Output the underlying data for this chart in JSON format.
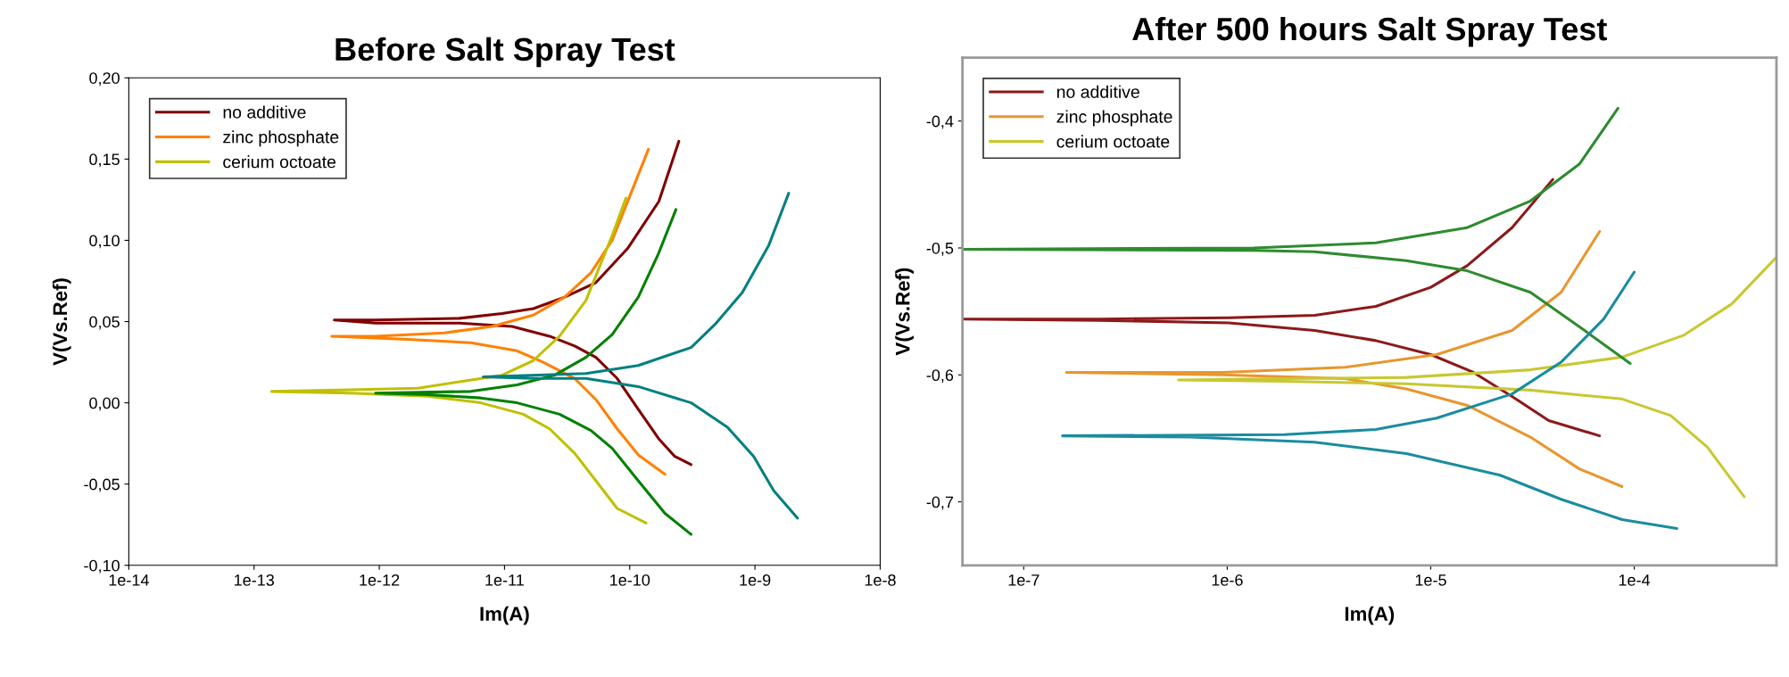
{
  "chart_data": [
    {
      "type": "line",
      "title": "Before Salt Spray Test",
      "xlabel": "Im(A)",
      "ylabel": "V(Vs.Ref)",
      "log": "x",
      "grid": false,
      "legend": "top left",
      "line_style": "solid",
      "marker": "none",
      "xlim": [
        1e-14,
        1e-08
      ],
      "xticks": [
        {
          "value": 1e-14,
          "label": "1e-14"
        },
        {
          "value": 1e-13,
          "label": "1e-13"
        },
        {
          "value": 1e-12,
          "label": "1e-12"
        },
        {
          "value": 1e-11,
          "label": "1e-11"
        },
        {
          "value": 1e-10,
          "label": "1e-10"
        },
        {
          "value": 1e-09,
          "label": "1e-9"
        },
        {
          "value": 1e-08,
          "label": "1e-8"
        }
      ],
      "ylim": [
        -0.1,
        0.2
      ],
      "yticks": [
        {
          "value": -0.1,
          "label": "-0,10"
        },
        {
          "value": -0.05,
          "label": "-0,05"
        },
        {
          "value": 0.0,
          "label": "0,00"
        },
        {
          "value": 0.05,
          "label": "0,05"
        },
        {
          "value": 0.1,
          "label": "0,10"
        },
        {
          "value": 0.15,
          "label": "0,15"
        },
        {
          "value": 0.2,
          "label": "0,20"
        }
      ],
      "series": [
        {
          "name": "no additive",
          "color": "#800000",
          "x": [
            2.47e-10,
            1.71e-10,
            9.62e-11,
            5.37e-11,
            3.02e-11,
            1.7e-11,
            9.55e-12,
            4.37e-12,
            9.33e-13,
            4.37e-13,
            9.33e-13,
            4.37e-12,
            1.15e-11,
            2.29e-11,
            3.63e-11,
            5.37e-11,
            7.94e-11,
            1.17e-10,
            1.7e-10,
            2.29e-10,
            3.09e-10
          ],
          "values": [
            0.161,
            0.124,
            0.095,
            0.074,
            0.065,
            0.058,
            0.055,
            0.052,
            0.051,
            0.051,
            0.049,
            0.049,
            0.047,
            0.041,
            0.035,
            0.028,
            0.015,
            -0.004,
            -0.022,
            -0.033,
            -0.038
          ]
        },
        {
          "name": "zinc phosphate",
          "color": "#ff8000",
          "x": [
            1.41e-10,
            1.06e-10,
            7.24e-11,
            4.9e-11,
            3.02e-11,
            1.7e-11,
            7.94e-12,
            3.31e-12,
            9.33e-13,
            4.17e-13,
            1.7e-12,
            5.37e-12,
            1.26e-11,
            2.04e-11,
            3.63e-11,
            5.37e-11,
            7.94e-11,
            1.17e-10,
            1.91e-10
          ],
          "values": [
            0.156,
            0.132,
            0.1,
            0.08,
            0.065,
            0.054,
            0.047,
            0.043,
            0.041,
            0.041,
            0.039,
            0.037,
            0.032,
            0.025,
            0.015,
            0.002,
            -0.016,
            -0.032,
            -0.044
          ]
        },
        {
          "name": "cerium octoate",
          "color": "#c0c000",
          "x": [
            9.33e-11,
            7.24e-11,
            4.47e-11,
            2.75e-11,
            1.7e-11,
            9.55e-12,
            4.37e-12,
            2.04e-12,
            5.89e-13,
            1.38e-13,
            5.89e-13,
            2.45e-12,
            6.46e-12,
            1.41e-11,
            2.29e-11,
            3.63e-11,
            5.37e-11,
            7.94e-11,
            1.35e-10
          ],
          "values": [
            0.126,
            0.103,
            0.063,
            0.041,
            0.026,
            0.017,
            0.013,
            0.009,
            0.008,
            0.007,
            0.006,
            0.004,
            0.0,
            -0.007,
            -0.016,
            -0.031,
            -0.048,
            -0.065,
            -0.074
          ]
        },
        {
          "color": "#008000",
          "x": [
            2.34e-10,
            1.7e-10,
            1.17e-10,
            7.24e-11,
            4.47e-11,
            2.51e-11,
            1.26e-11,
            5.37e-12,
            9.33e-13,
            2.45e-12,
            6.46e-12,
            1.26e-11,
            2.75e-11,
            4.9e-11,
            7.24e-11,
            1.17e-10,
            1.91e-10,
            3.09e-10
          ],
          "values": [
            0.119,
            0.092,
            0.065,
            0.042,
            0.028,
            0.017,
            0.011,
            0.007,
            0.006,
            0.005,
            0.003,
            0.0,
            -0.007,
            -0.017,
            -0.028,
            -0.048,
            -0.068,
            -0.081
          ]
        },
        {
          "color": "#008080",
          "x": [
            1.86e-09,
            1.29e-09,
            7.94e-10,
            4.9e-10,
            3.09e-10,
            1.17e-10,
            4.47e-11,
            6.76e-12,
            1.7e-11,
            4.47e-11,
            1.17e-10,
            3.09e-10,
            6.03e-10,
            9.77e-10,
            1.41e-09,
            2.19e-09
          ],
          "values": [
            0.129,
            0.097,
            0.068,
            0.049,
            0.034,
            0.023,
            0.018,
            0.016,
            0.015,
            0.015,
            0.01,
            0.0,
            -0.015,
            -0.033,
            -0.054,
            -0.071
          ]
        }
      ]
    },
    {
      "type": "line",
      "title": "After 500 hours Salt Spray Test",
      "xlabel": "Im(A)",
      "ylabel": "V(Vs.Ref)",
      "log": "x",
      "grid": false,
      "legend": "top left",
      "line_style": "solid",
      "marker": "none",
      "xlim": [
        5e-08,
        0.0005
      ],
      "xticks": [
        {
          "value": 1e-07,
          "label": "1e-7"
        },
        {
          "value": 1e-06,
          "label": "1e-6"
        },
        {
          "value": 1e-05,
          "label": "1e-5"
        },
        {
          "value": 0.0001,
          "label": "1e-4"
        }
      ],
      "ylim": [
        -0.75,
        -0.35
      ],
      "yticks": [
        {
          "value": -0.7,
          "label": "-0,7"
        },
        {
          "value": -0.6,
          "label": "-0,6"
        },
        {
          "value": -0.5,
          "label": "-0,5"
        },
        {
          "value": -0.4,
          "label": "-0,4"
        }
      ],
      "series": [
        {
          "name": "no additive",
          "color": "#8b1a1a",
          "x": [
            3.98e-05,
            2.51e-05,
            1.51e-05,
            1e-05,
            5.37e-06,
            2.69e-06,
            1.02e-06,
            2.34e-07,
            5e-08,
            2.34e-07,
            1.02e-06,
            2.69e-06,
            5.37e-06,
            1e-05,
            1.62e-05,
            2.51e-05,
            3.8e-05,
            6.76e-05
          ],
          "values": [
            -0.446,
            -0.484,
            -0.514,
            -0.531,
            -0.546,
            -0.553,
            -0.555,
            -0.556,
            -0.556,
            -0.557,
            -0.559,
            -0.565,
            -0.573,
            -0.584,
            -0.598,
            -0.617,
            -0.636,
            -0.648
          ]
        },
        {
          "name": "zinc phosphate",
          "color": "#e8962e",
          "x": [
            6.76e-05,
            4.37e-05,
            2.51e-05,
            1.07e-05,
            3.8e-06,
            9.55e-07,
            1.62e-07,
            9.55e-07,
            3.8e-06,
            7.59e-06,
            1.51e-05,
            3.09e-05,
            5.37e-05,
            8.71e-05
          ],
          "values": [
            -0.487,
            -0.535,
            -0.565,
            -0.584,
            -0.594,
            -0.598,
            -0.598,
            -0.6,
            -0.603,
            -0.611,
            -0.624,
            -0.649,
            -0.674,
            -0.688
          ]
        },
        {
          "name": "cerium octoate",
          "color": "#c8c832",
          "x": [
            0.000495,
            0.000302,
            0.000174,
            8.71e-05,
            3.09e-05,
            7.59e-06,
            1.91e-06,
            5.75e-07,
            1.91e-06,
            7.59e-06,
            3.09e-05,
            8.71e-05,
            0.000151,
            0.000229,
            0.000347
          ],
          "values": [
            -0.508,
            -0.544,
            -0.569,
            -0.586,
            -0.596,
            -0.602,
            -0.603,
            -0.604,
            -0.605,
            -0.607,
            -0.612,
            -0.619,
            -0.632,
            -0.657,
            -0.696
          ]
        },
        {
          "color": "#2e8b2e",
          "x": [
            8.32e-05,
            5.37e-05,
            3.09e-05,
            1.51e-05,
            5.37e-06,
            1.35e-06,
            5e-08,
            1.35e-06,
            2.69e-06,
            7.59e-06,
            1.51e-05,
            3.09e-05,
            5.37e-05,
            9.55e-05
          ],
          "values": [
            -0.39,
            -0.434,
            -0.463,
            -0.484,
            -0.496,
            -0.5,
            -0.501,
            -0.502,
            -0.503,
            -0.51,
            -0.518,
            -0.535,
            -0.562,
            -0.591
          ]
        },
        {
          "color": "#1a8ca0",
          "x": [
            0.0001,
            7.08e-05,
            4.37e-05,
            2.51e-05,
            1.07e-05,
            5.37e-06,
            1.91e-06,
            1.55e-07,
            6.61e-07,
            2.69e-06,
            7.59e-06,
            2.19e-05,
            4.37e-05,
            8.71e-05,
            0.000162
          ],
          "values": [
            -0.519,
            -0.556,
            -0.59,
            -0.615,
            -0.634,
            -0.643,
            -0.647,
            -0.648,
            -0.649,
            -0.653,
            -0.662,
            -0.679,
            -0.698,
            -0.714,
            -0.721
          ]
        }
      ]
    }
  ]
}
